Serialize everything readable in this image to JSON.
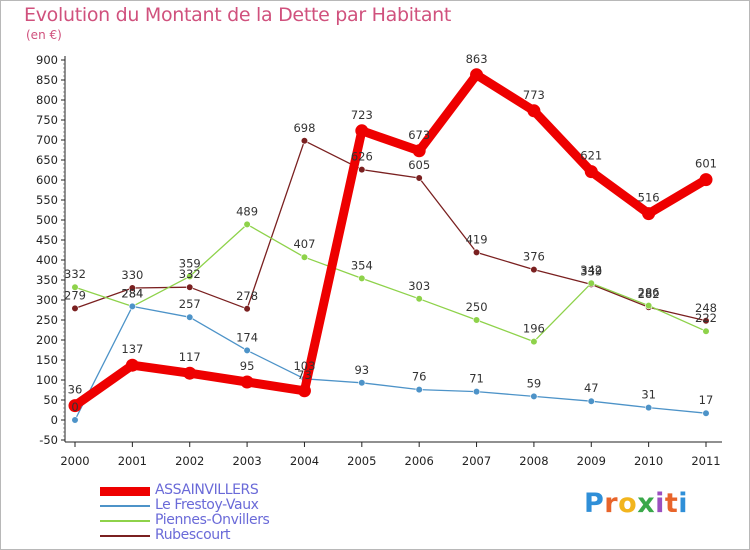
{
  "title": "Evolution du Montant de la Dette par Habitant",
  "unit": "(en €)",
  "logo": {
    "text": "Proxiti",
    "colors": [
      "#2f8fd8",
      "#e8642a",
      "#f2b51e",
      "#3aa84a",
      "#9a4fc0",
      "#e8642a",
      "#2f8fd8"
    ]
  },
  "chart_data": {
    "type": "line",
    "title": "Evolution du Montant de la Dette par Habitant",
    "subtitle": "(en €)",
    "xlabel": "",
    "ylabel": "",
    "ylim": [
      -50,
      900
    ],
    "yticks": [
      -50,
      0,
      50,
      100,
      150,
      200,
      250,
      300,
      350,
      400,
      450,
      500,
      550,
      600,
      650,
      700,
      750,
      800,
      850,
      900
    ],
    "x": [
      "2000",
      "2001",
      "2002",
      "2003",
      "2004",
      "2005",
      "2006",
      "2007",
      "2008",
      "2009",
      "2010",
      "2011"
    ],
    "grid": "none",
    "legend": "bottom-left",
    "series": [
      {
        "name": "ASSAINVILLERS",
        "color": "#ee0000",
        "values": [
          36,
          137,
          117,
          95,
          73,
          723,
          673,
          863,
          773,
          621,
          516,
          601
        ],
        "labels": [
          "36",
          "137",
          "117",
          "95",
          "73",
          "723",
          "673",
          "863",
          "773",
          "621",
          "516",
          "601"
        ]
      },
      {
        "name": "Le Frestoy-Vaux",
        "color": "#4d93c8",
        "values": [
          0,
          284,
          257,
          174,
          103,
          93,
          76,
          71,
          59,
          47,
          31,
          17
        ],
        "labels": [
          "0",
          "284",
          "257",
          "174",
          "103",
          "93",
          "76",
          "71",
          "59",
          "47",
          "31",
          "17"
        ]
      },
      {
        "name": "Piennes-Onvillers",
        "color": "#8ed24a",
        "values": [
          332,
          284,
          359,
          489,
          407,
          354,
          303,
          250,
          196,
          342,
          286,
          222
        ],
        "labels": [
          "332",
          "284",
          "359",
          "489",
          "407",
          "354",
          "303",
          "250",
          "196",
          "342",
          "286",
          "222"
        ]
      },
      {
        "name": "Rubescourt",
        "color": "#7a2020",
        "values": [
          279,
          330,
          332,
          278,
          698,
          626,
          605,
          419,
          376,
          339,
          282,
          248
        ],
        "labels": [
          "279",
          "330",
          "332",
          "278",
          "698",
          "626",
          "605",
          "419",
          "376",
          "339",
          "282",
          "248"
        ]
      }
    ]
  }
}
